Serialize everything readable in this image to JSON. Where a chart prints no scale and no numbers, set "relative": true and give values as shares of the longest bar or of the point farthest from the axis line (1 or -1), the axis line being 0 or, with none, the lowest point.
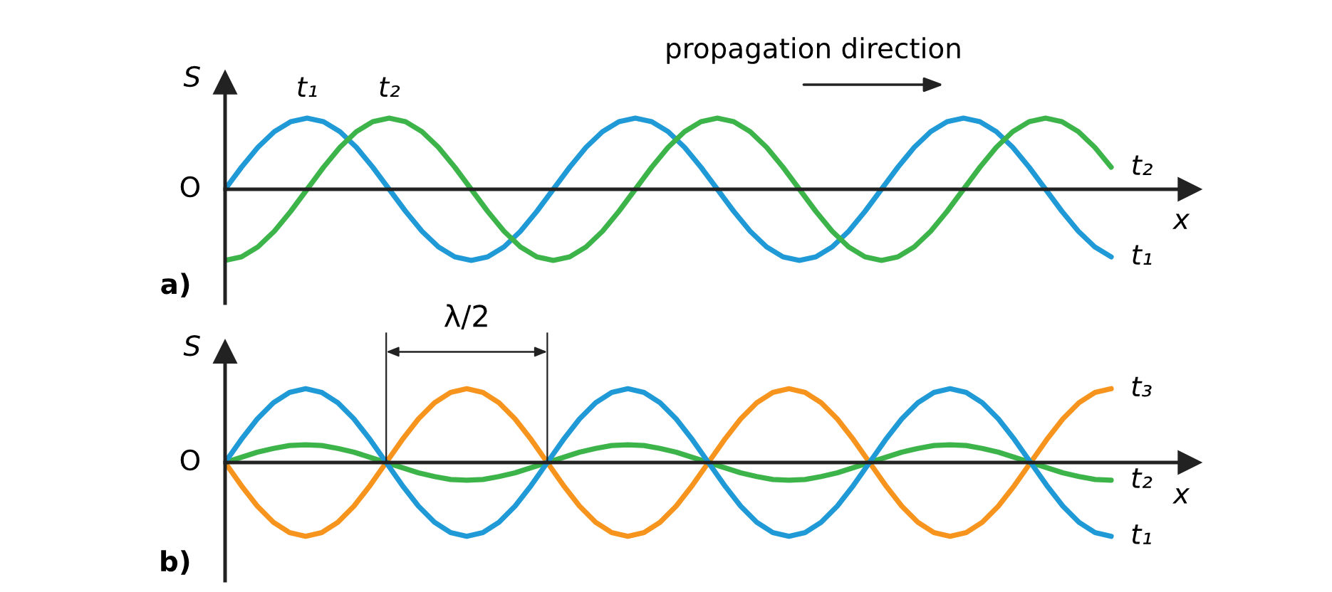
{
  "chart_data": [
    {
      "type": "line",
      "relative": true,
      "ylabel": "S",
      "xlabel": "x",
      "tick_labels": false,
      "marker": "none",
      "line_style": "solid",
      "annotations": [
        "O",
        "a)",
        "propagation direction"
      ],
      "categories": [
        null,
        null,
        null,
        null,
        null,
        null,
        null,
        null,
        null,
        null,
        null,
        null,
        null,
        null,
        null,
        null,
        null,
        null,
        null,
        null,
        null,
        null,
        null,
        null,
        null,
        null,
        null,
        null,
        null,
        null,
        null,
        null,
        null,
        null,
        null,
        null,
        null,
        null,
        null,
        null,
        null,
        null,
        null,
        null,
        null,
        null,
        null,
        null,
        null,
        null,
        null,
        null,
        null,
        null,
        null
      ],
      "series": [
        {
          "name": "t₁",
          "color": "#1f9ad6",
          "values": [
            0,
            0.31,
            0.59,
            0.81,
            0.95,
            1,
            0.95,
            0.81,
            0.59,
            0.31,
            0,
            -0.31,
            -0.59,
            -0.81,
            -0.95,
            -1,
            -0.95,
            -0.81,
            -0.59,
            -0.31,
            0,
            0.31,
            0.59,
            0.81,
            0.95,
            1,
            0.95,
            0.81,
            0.59,
            0.31,
            0,
            -0.31,
            -0.59,
            -0.81,
            -0.95,
            -1,
            -0.95,
            -0.81,
            -0.59,
            -0.31,
            0,
            0.31,
            0.59,
            0.81,
            0.95,
            1,
            0.95,
            0.81,
            0.59,
            0.31,
            0,
            -0.31,
            -0.59,
            -0.81,
            -0.95
          ]
        },
        {
          "name": "t₂",
          "color": "#3cb44a",
          "values": [
            -1,
            -0.95,
            -0.81,
            -0.59,
            -0.31,
            0,
            0.31,
            0.59,
            0.81,
            0.95,
            1,
            0.95,
            0.81,
            0.59,
            0.31,
            0,
            -0.31,
            -0.59,
            -0.81,
            -0.95,
            -1,
            -0.95,
            -0.81,
            -0.59,
            -0.31,
            0,
            0.31,
            0.59,
            0.81,
            0.95,
            1,
            0.95,
            0.81,
            0.59,
            0.31,
            0,
            -0.31,
            -0.59,
            -0.81,
            -0.95,
            -1,
            -0.95,
            -0.81,
            -0.59,
            -0.31,
            0,
            0.31,
            0.59,
            0.81,
            0.95,
            1,
            0.95,
            0.81,
            0.59,
            0.31
          ]
        }
      ]
    },
    {
      "type": "line",
      "relative": true,
      "ylabel": "S",
      "xlabel": "x",
      "tick_labels": false,
      "marker": "none",
      "line_style": "solid",
      "annotations": [
        "O",
        "b)",
        "λ/2"
      ],
      "categories": [
        null,
        null,
        null,
        null,
        null,
        null,
        null,
        null,
        null,
        null,
        null,
        null,
        null,
        null,
        null,
        null,
        null,
        null,
        null,
        null,
        null,
        null,
        null,
        null,
        null,
        null,
        null,
        null,
        null,
        null,
        null,
        null,
        null,
        null,
        null,
        null,
        null,
        null,
        null,
        null,
        null,
        null,
        null,
        null,
        null,
        null,
        null,
        null,
        null,
        null,
        null,
        null,
        null,
        null,
        null,
        null
      ],
      "series": [
        {
          "name": "t₃",
          "color": "#f7941d",
          "values": [
            0,
            -0.31,
            -0.59,
            -0.81,
            -0.95,
            -1,
            -0.95,
            -0.81,
            -0.59,
            -0.31,
            0,
            0.31,
            0.59,
            0.81,
            0.95,
            1,
            0.95,
            0.81,
            0.59,
            0.31,
            0,
            -0.31,
            -0.59,
            -0.81,
            -0.95,
            -1,
            -0.95,
            -0.81,
            -0.59,
            -0.31,
            0,
            0.31,
            0.59,
            0.81,
            0.95,
            1,
            0.95,
            0.81,
            0.59,
            0.31,
            0,
            -0.31,
            -0.59,
            -0.81,
            -0.95,
            -1,
            -0.95,
            -0.81,
            -0.59,
            -0.31,
            0,
            0.31,
            0.59,
            0.81,
            0.95,
            1
          ]
        },
        {
          "name": "t₂",
          "color": "#3cb44a",
          "values": [
            0,
            0.07,
            0.14,
            0.19,
            0.23,
            0.24,
            0.23,
            0.19,
            0.14,
            0.07,
            0,
            -0.07,
            -0.14,
            -0.19,
            -0.23,
            -0.24,
            -0.23,
            -0.19,
            -0.14,
            -0.07,
            0,
            0.07,
            0.14,
            0.19,
            0.23,
            0.24,
            0.23,
            0.19,
            0.14,
            0.07,
            0,
            -0.07,
            -0.14,
            -0.19,
            -0.23,
            -0.24,
            -0.23,
            -0.19,
            -0.14,
            -0.07,
            0,
            0.07,
            0.14,
            0.19,
            0.23,
            0.24,
            0.23,
            0.19,
            0.14,
            0.07,
            0,
            -0.07,
            -0.14,
            -0.19,
            -0.23,
            -0.24
          ]
        },
        {
          "name": "t₁",
          "color": "#1f9ad6",
          "values": [
            0,
            0.31,
            0.59,
            0.81,
            0.95,
            1,
            0.95,
            0.81,
            0.59,
            0.31,
            0,
            -0.31,
            -0.59,
            -0.81,
            -0.95,
            -1,
            -0.95,
            -0.81,
            -0.59,
            -0.31,
            0,
            0.31,
            0.59,
            0.81,
            0.95,
            1,
            0.95,
            0.81,
            0.59,
            0.31,
            0,
            -0.31,
            -0.59,
            -0.81,
            -0.95,
            -1,
            -0.95,
            -0.81,
            -0.59,
            -0.31,
            0,
            0.31,
            0.59,
            0.81,
            0.95,
            1,
            0.95,
            0.81,
            0.59,
            0.31,
            0,
            -0.31,
            -0.59,
            -0.81,
            -0.95,
            -1
          ]
        }
      ]
    }
  ]
}
